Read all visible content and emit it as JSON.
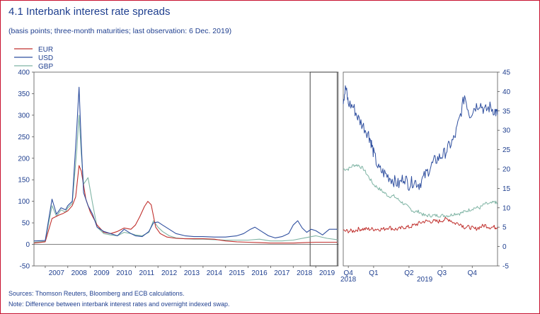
{
  "title": "4.1 Interbank interest rate spreads",
  "subtitle": "(basis points; three-month maturities; last observation: 6 Dec. 2019)",
  "sources": "Sources: Thomson Reuters, Bloomberg and ECB calculations.",
  "note": "Note: Difference between interbank interest rates and overnight indexed swap.",
  "colors": {
    "frame": "#c8102e",
    "text": "#1f3f8f",
    "EUR": "#c0302d",
    "USD": "#2f4f9f",
    "GBP": "#7fb4a4"
  },
  "chart_data": [
    {
      "type": "line",
      "panel": "left",
      "title": "",
      "ylim": [
        -50,
        400
      ],
      "yticks": [
        -50,
        0,
        50,
        100,
        150,
        200,
        250,
        300,
        350,
        400
      ],
      "ytick_labels": [
        "-50",
        "0",
        "50",
        "100",
        "150",
        "200",
        "250",
        "300",
        "350",
        "400"
      ],
      "xlim": [
        2006.5,
        2020.0
      ],
      "xtick_labels": [
        "2007",
        "2008",
        "2009",
        "2010",
        "2011",
        "2012",
        "2013",
        "2014",
        "2015",
        "2016",
        "2017",
        "2018",
        "2019"
      ],
      "highlight_range": [
        2018.75,
        2019.95
      ],
      "legend": [
        "EUR",
        "USD",
        "GBP"
      ],
      "legend_position": "top-left",
      "series": [
        {
          "name": "EUR",
          "x": [
            2006.5,
            2007.0,
            2007.3,
            2007.6,
            2007.8,
            2008.0,
            2008.2,
            2008.35,
            2008.5,
            2008.6,
            2008.8,
            2009.0,
            2009.3,
            2009.6,
            2009.9,
            2010.2,
            2010.5,
            2010.8,
            2011.0,
            2011.2,
            2011.4,
            2011.55,
            2011.7,
            2011.9,
            2012.1,
            2012.4,
            2012.8,
            2013.2,
            2013.6,
            2014.0,
            2014.5,
            2015.0,
            2015.5,
            2016.0,
            2016.5,
            2017.0,
            2017.5,
            2018.0,
            2018.5,
            2019.0,
            2019.5,
            2019.95
          ],
          "y": [
            3,
            6,
            60,
            68,
            72,
            78,
            90,
            110,
            183,
            170,
            105,
            75,
            45,
            28,
            25,
            30,
            38,
            35,
            45,
            65,
            88,
            100,
            92,
            40,
            25,
            17,
            14,
            13,
            13,
            13,
            12,
            8,
            6,
            5,
            4,
            3,
            3,
            3,
            4,
            5,
            5,
            5
          ]
        },
        {
          "name": "USD",
          "x": [
            2006.5,
            2007.0,
            2007.3,
            2007.5,
            2007.7,
            2007.9,
            2008.0,
            2008.2,
            2008.4,
            2008.5,
            2008.6,
            2008.7,
            2008.9,
            2009.1,
            2009.3,
            2009.6,
            2009.9,
            2010.2,
            2010.5,
            2010.8,
            2011.0,
            2011.3,
            2011.6,
            2011.8,
            2012.0,
            2012.2,
            2012.5,
            2012.8,
            2013.2,
            2013.6,
            2014.0,
            2014.5,
            2015.0,
            2015.5,
            2015.8,
            2016.1,
            2016.3,
            2016.6,
            2016.9,
            2017.2,
            2017.5,
            2017.8,
            2018.0,
            2018.2,
            2018.4,
            2018.6,
            2018.8,
            2019.0,
            2019.3,
            2019.6,
            2019.95
          ],
          "y": [
            8,
            9,
            105,
            70,
            85,
            80,
            90,
            100,
            270,
            365,
            230,
            120,
            90,
            70,
            40,
            30,
            25,
            20,
            35,
            25,
            20,
            18,
            30,
            50,
            52,
            45,
            35,
            25,
            20,
            18,
            18,
            17,
            17,
            20,
            25,
            35,
            40,
            30,
            20,
            15,
            18,
            25,
            45,
            55,
            38,
            28,
            35,
            32,
            22,
            35,
            35
          ]
        },
        {
          "name": "GBP",
          "x": [
            2006.5,
            2007.0,
            2007.3,
            2007.5,
            2007.7,
            2007.9,
            2008.0,
            2008.2,
            2008.4,
            2008.5,
            2008.6,
            2008.7,
            2008.9,
            2009.1,
            2009.3,
            2009.6,
            2009.9,
            2010.2,
            2010.5,
            2010.8,
            2011.0,
            2011.3,
            2011.6,
            2011.8,
            2012.0,
            2012.2,
            2012.5,
            2012.8,
            2013.2,
            2013.6,
            2014.0,
            2014.5,
            2015.0,
            2015.5,
            2016.0,
            2016.5,
            2017.0,
            2017.5,
            2018.0,
            2018.5,
            2019.0,
            2019.5,
            2019.95
          ],
          "y": [
            5,
            7,
            90,
            65,
            80,
            75,
            85,
            95,
            220,
            300,
            210,
            140,
            155,
            95,
            40,
            25,
            22,
            20,
            28,
            25,
            22,
            20,
            28,
            55,
            40,
            30,
            20,
            15,
            13,
            12,
            12,
            11,
            10,
            10,
            10,
            12,
            8,
            8,
            10,
            15,
            20,
            14,
            11
          ]
        }
      ]
    },
    {
      "type": "line",
      "panel": "right",
      "title": "",
      "ylim": [
        -5,
        45
      ],
      "yticks": [
        -5,
        0,
        5,
        10,
        15,
        20,
        25,
        30,
        35,
        40,
        45
      ],
      "ytick_labels": [
        "-5",
        "0",
        "5",
        "10",
        "15",
        "20",
        "25",
        "30",
        "35",
        "40",
        "45"
      ],
      "xlim": [
        0,
        61
      ],
      "xticks_at": [
        2,
        12,
        26,
        39,
        51
      ],
      "xtick_labels": [
        "Q4",
        "Q1",
        "Q2",
        "Q3",
        "Q4"
      ],
      "year_labels": [
        "2018",
        "2019"
      ],
      "series": [
        {
          "name": "USD",
          "x": [
            0,
            1,
            2,
            4,
            6,
            8,
            10,
            11,
            12,
            14,
            16,
            18,
            20,
            22,
            24,
            26,
            28,
            30,
            32,
            34,
            36,
            38,
            40,
            42,
            44,
            46,
            48,
            50,
            52,
            54,
            56,
            58,
            60,
            61
          ],
          "y": [
            38,
            41,
            37,
            36,
            33,
            31,
            29,
            27,
            24,
            20,
            19,
            18,
            17,
            16,
            18,
            16,
            17,
            16,
            18,
            20,
            22,
            23,
            24,
            26,
            28,
            33,
            39,
            34,
            36,
            37,
            35,
            36,
            35,
            34
          ]
        },
        {
          "name": "GBP",
          "x": [
            0,
            2,
            4,
            6,
            8,
            10,
            12,
            14,
            16,
            18,
            20,
            22,
            24,
            26,
            28,
            30,
            32,
            34,
            36,
            38,
            40,
            42,
            44,
            46,
            48,
            50,
            52,
            54,
            56,
            58,
            60,
            61
          ],
          "y": [
            20,
            20,
            21,
            21,
            20,
            18,
            16,
            15,
            14,
            13,
            13,
            12,
            11,
            10,
            9,
            9,
            8,
            8,
            8,
            8,
            8,
            8,
            8.5,
            8.5,
            9,
            9.5,
            10,
            10,
            11,
            11,
            11.5,
            11
          ]
        },
        {
          "name": "EUR",
          "x": [
            0,
            2,
            4,
            6,
            8,
            10,
            12,
            14,
            16,
            18,
            20,
            22,
            24,
            26,
            28,
            30,
            32,
            34,
            36,
            38,
            40,
            42,
            44,
            46,
            48,
            50,
            52,
            54,
            56,
            58,
            60,
            61
          ],
          "y": [
            4,
            4,
            4,
            4.5,
            4.5,
            4.5,
            4.5,
            4.5,
            4.5,
            5,
            4.5,
            4.5,
            5,
            5,
            5.5,
            6,
            6.5,
            6.5,
            6.5,
            6.5,
            7,
            7,
            6,
            6,
            5,
            5,
            4.5,
            5,
            5.5,
            5,
            5,
            5
          ]
        }
      ]
    }
  ]
}
